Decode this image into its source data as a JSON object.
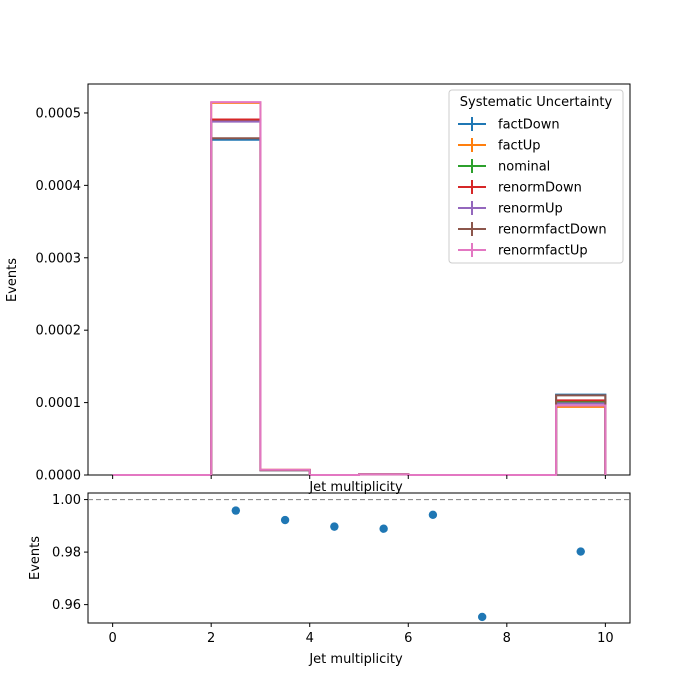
{
  "chart_data": [
    {
      "type": "line",
      "ylabel": "Events",
      "xlabel": "Jet multiplicity",
      "xlim": [
        -0.5,
        10.5
      ],
      "ylim": [
        0,
        0.00054
      ],
      "xticks": [
        0,
        2,
        4,
        6,
        8,
        10
      ],
      "yticks": [
        0.0,
        0.0001,
        0.0002,
        0.0003,
        0.0004,
        0.0005
      ],
      "ytick_labels": [
        "0.0000",
        "0.0001",
        "0.0002",
        "0.0003",
        "0.0004",
        "0.0005"
      ],
      "bin_edges": [
        0,
        1,
        2,
        3,
        4,
        5,
        6,
        7,
        8,
        9,
        10
      ],
      "legend": {
        "title": "Systematic Uncertainty",
        "placement": "top-right"
      },
      "series": [
        {
          "name": "factDown",
          "color": "#1f77b4",
          "values": [
            0,
            0,
            0.000463,
            6.6e-06,
            0,
            8e-07,
            0,
            0,
            0,
            0.000111
          ]
        },
        {
          "name": "factUp",
          "color": "#ff7f0e",
          "values": [
            0,
            0,
            0.000514,
            7.2e-06,
            0,
            9e-07,
            0,
            0,
            0,
            9.4e-05
          ]
        },
        {
          "name": "nominal",
          "color": "#2ca02c",
          "values": [
            0,
            0,
            0.00049,
            6.9e-06,
            0,
            8e-07,
            0,
            0,
            0,
            0.000101
          ]
        },
        {
          "name": "renormDown",
          "color": "#d62728",
          "values": [
            0,
            0,
            0.000491,
            6.9e-06,
            0,
            8e-07,
            0,
            0,
            0,
            0.000103
          ]
        },
        {
          "name": "renormUp",
          "color": "#9467bd",
          "values": [
            0,
            0,
            0.000488,
            6.8e-06,
            0,
            8e-07,
            0,
            0,
            0,
            9.9e-05
          ]
        },
        {
          "name": "renormfactDown",
          "color": "#8c564b",
          "values": [
            0,
            0,
            0.000465,
            6.6e-06,
            0,
            8e-07,
            0,
            0,
            0,
            0.00011
          ]
        },
        {
          "name": "renormfactUp",
          "color": "#e377c2",
          "values": [
            0,
            0,
            0.000515,
            7.2e-06,
            0,
            9e-07,
            0,
            0,
            0,
            9.6e-05
          ]
        }
      ]
    },
    {
      "type": "scatter",
      "ylabel": "Events",
      "xlabel": "Jet multiplicity",
      "xlim": [
        -0.5,
        10.5
      ],
      "ylim": [
        0.953,
        1.0025
      ],
      "xticks": [
        0,
        2,
        4,
        6,
        8,
        10
      ],
      "yticks": [
        0.96,
        0.98,
        1.0
      ],
      "ytick_labels": [
        "0.96",
        "0.98",
        "1.00"
      ],
      "reference_line": 1.0,
      "color": "#1f77b4",
      "x": [
        2.5,
        3.5,
        4.5,
        5.5,
        6.5,
        7.5,
        9.5
      ],
      "y": [
        0.9958,
        0.9922,
        0.9897,
        0.9889,
        0.9942,
        0.9553,
        0.9802
      ]
    }
  ]
}
